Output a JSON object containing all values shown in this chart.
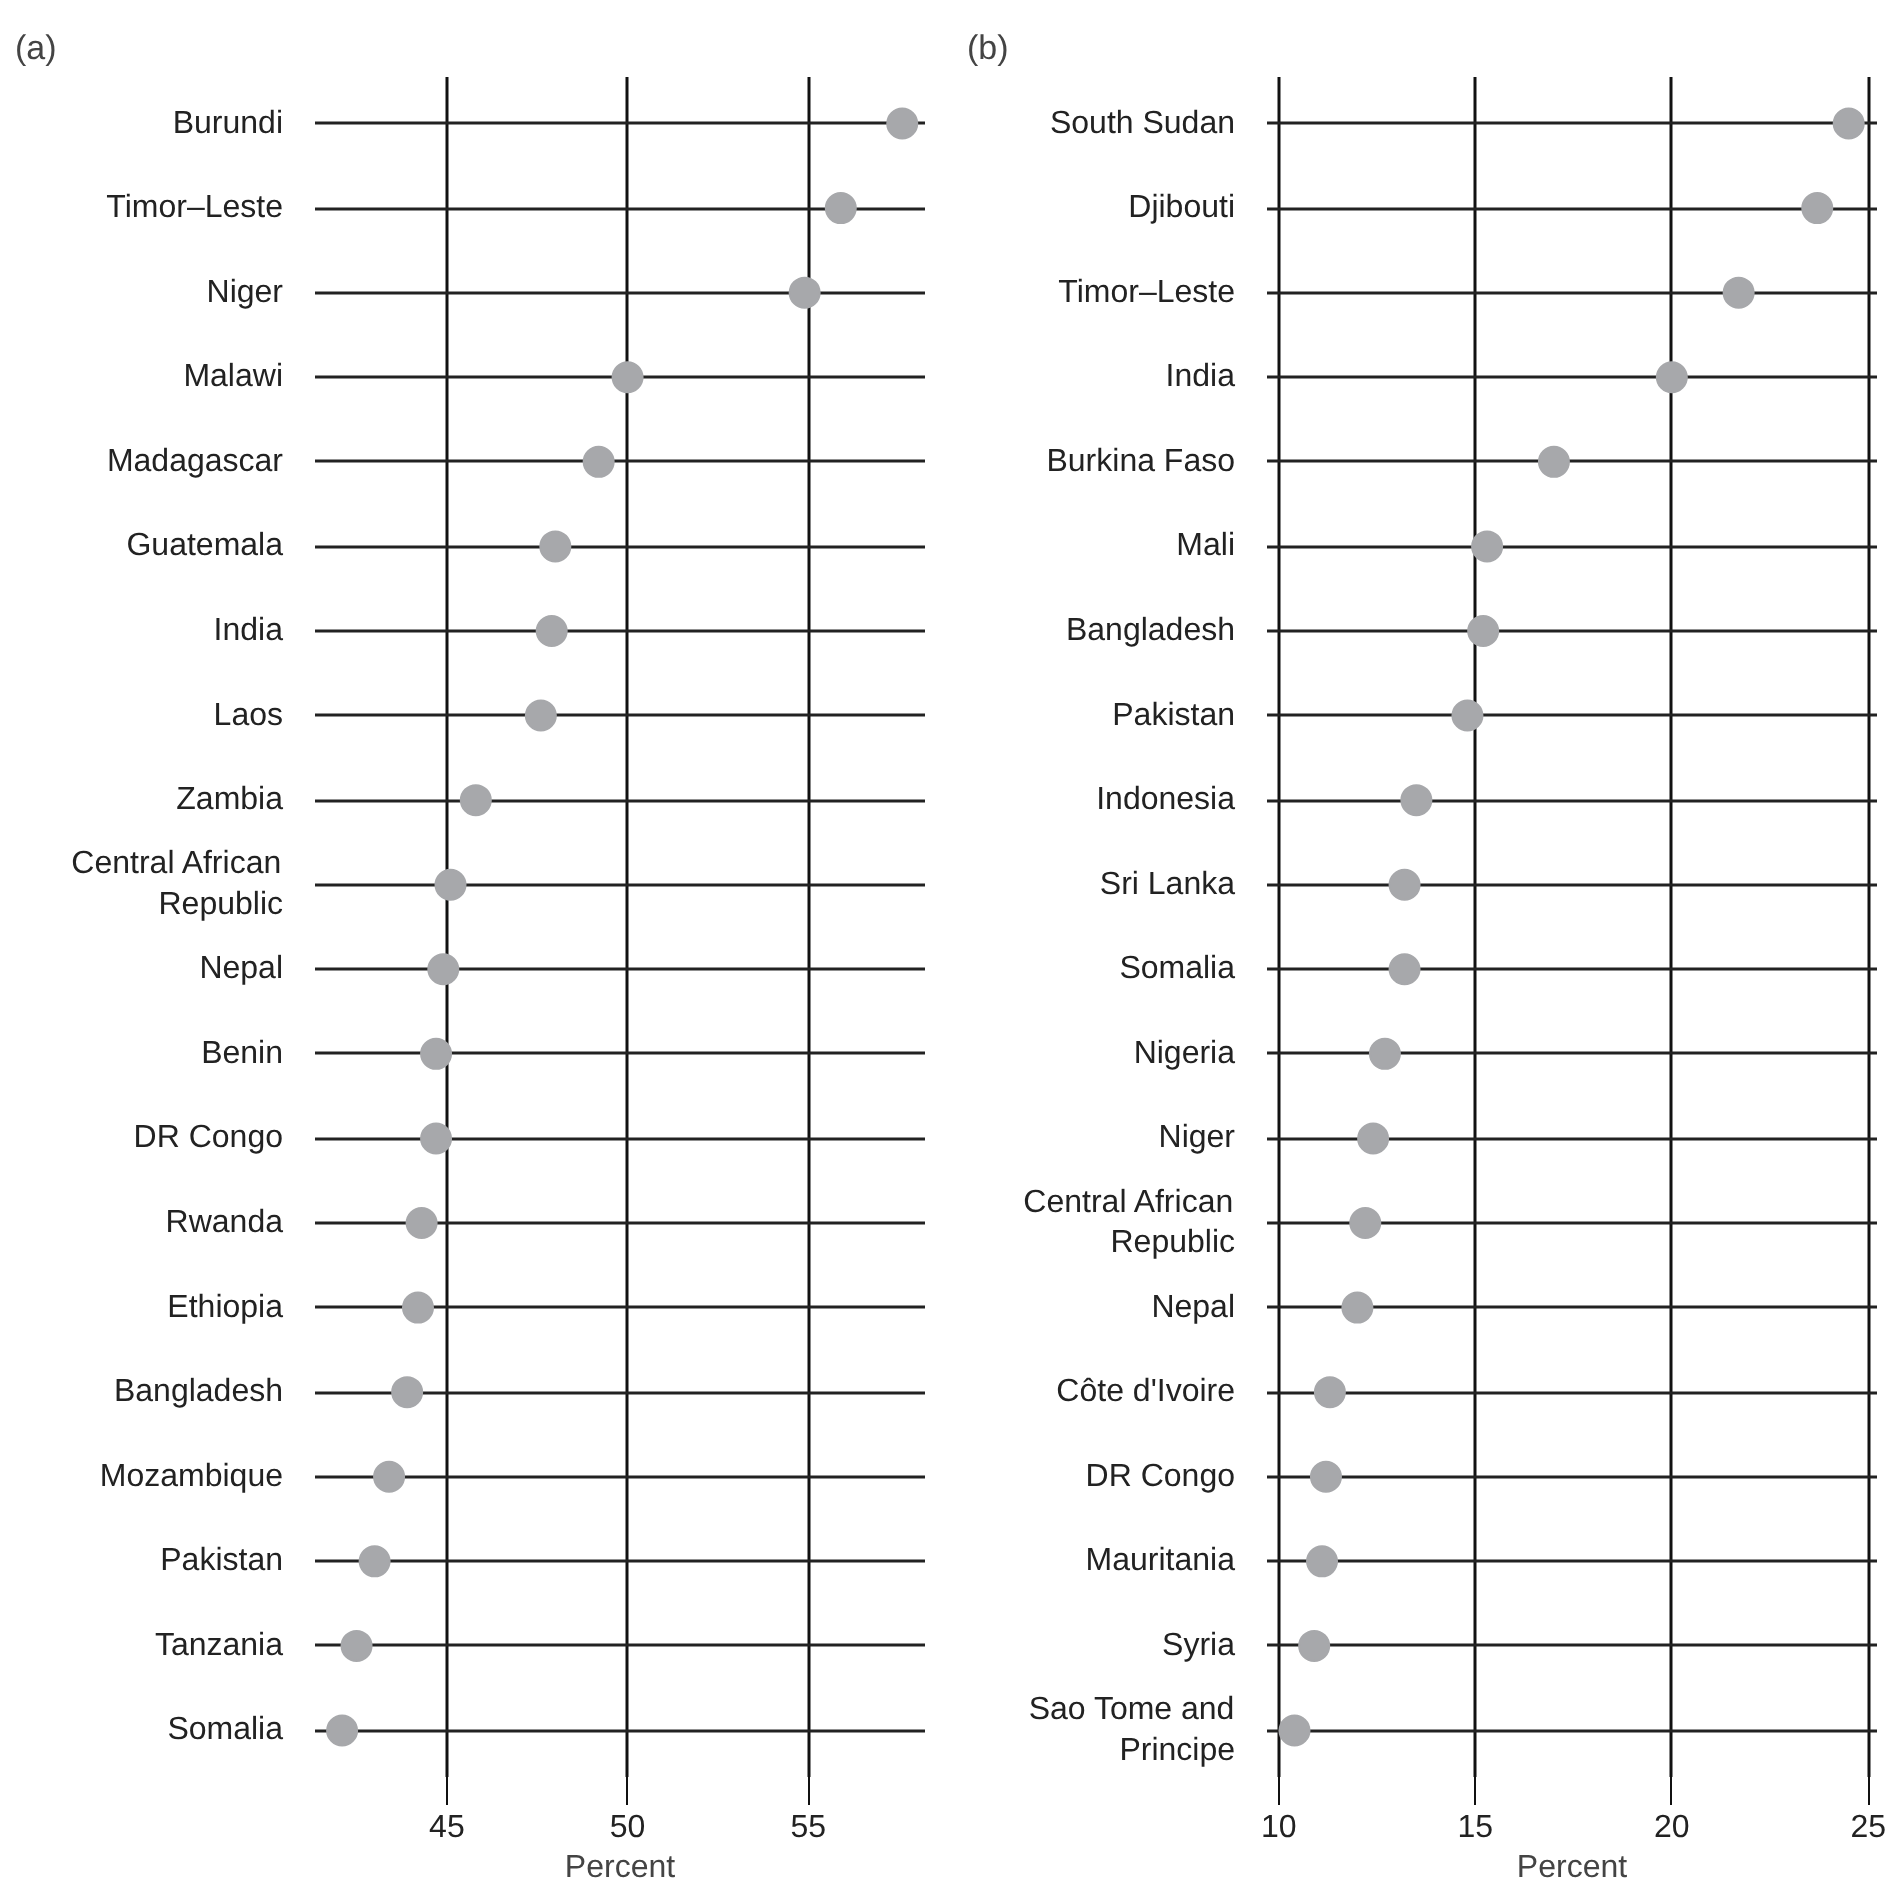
{
  "chart_data": [
    {
      "type": "scatter",
      "orientation": "horizontal",
      "title": "(a)",
      "xlabel": "Percent",
      "categories": [
        "Burundi",
        "Timor–Leste",
        "Niger",
        "Malawi",
        "Madagascar",
        "Guatemala",
        "India",
        "Laos",
        "Zambia",
        "Central African Republic",
        "Nepal",
        "Benin",
        "DR Congo",
        "Rwanda",
        "Ethiopia",
        "Bangladesh",
        "Mozambique",
        "Pakistan",
        "Tanzania",
        "Somalia"
      ],
      "values": [
        57.6,
        55.9,
        54.9,
        50.0,
        49.2,
        48.0,
        47.9,
        47.6,
        45.8,
        45.1,
        44.9,
        44.7,
        44.7,
        44.3,
        44.2,
        43.9,
        43.4,
        43.0,
        42.5,
        42.1
      ],
      "color": "#a7a8ab",
      "marker": "circle",
      "xlim": [
        41.35,
        58.23
      ],
      "xticks": [
        45,
        50,
        55
      ],
      "grid": true
    },
    {
      "type": "scatter",
      "orientation": "horizontal",
      "title": "(b)",
      "xlabel": "Percent",
      "categories": [
        "South Sudan",
        "Djibouti",
        "Timor–Leste",
        "India",
        "Burkina Faso",
        "Mali",
        "Bangladesh",
        "Pakistan",
        "Indonesia",
        "Sri Lanka",
        "Somalia",
        "Nigeria",
        "Niger",
        "Central African Republic",
        "Nepal",
        "Côte d'Ivoire",
        "DR Congo",
        "Mauritania",
        "Syria",
        "Sao Tome and Principe"
      ],
      "values": [
        24.5,
        23.7,
        21.7,
        20.0,
        17.0,
        15.3,
        15.2,
        14.8,
        13.5,
        13.2,
        13.2,
        12.7,
        12.4,
        12.2,
        12.0,
        11.3,
        11.2,
        11.1,
        10.9,
        10.4
      ],
      "color": "#a7a8ab",
      "marker": "circle",
      "xlim": [
        9.7,
        25.22
      ],
      "xticks": [
        10,
        15,
        20,
        25
      ],
      "grid": true
    }
  ]
}
